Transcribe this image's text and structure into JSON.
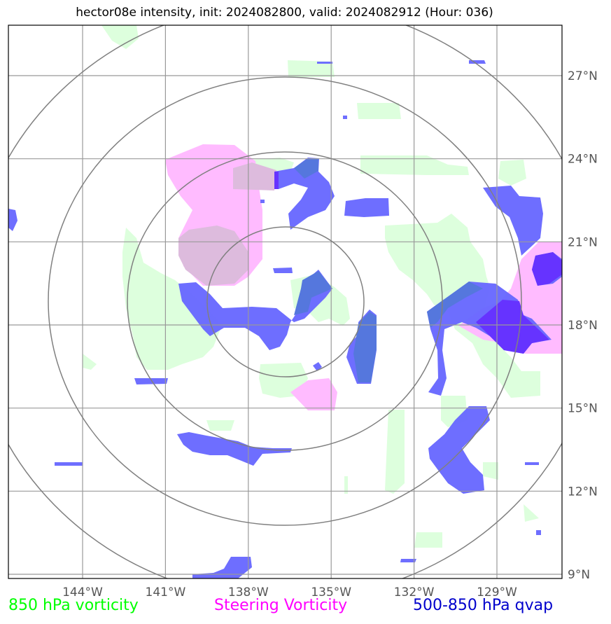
{
  "title": "hector08e intensity, init: 2024082800, valid: 2024082912 (Hour: 036)",
  "map": {
    "lon_range": [
      -147,
      -127
    ],
    "lat_range": [
      8,
      28
    ],
    "x_ticks": [
      "144°W",
      "141°W",
      "138°W",
      "135°W",
      "132°W",
      "129°W"
    ],
    "x_tick_values": [
      -144,
      -141,
      -138,
      -135,
      -132,
      -129
    ],
    "y_ticks": [
      "27°N",
      "24°N",
      "21°N",
      "18°N",
      "15°N",
      "12°N",
      "9°N"
    ],
    "y_tick_values": [
      27,
      24,
      21,
      18,
      15,
      12,
      9
    ],
    "gridlines": true,
    "range_rings_center": [
      -136.3,
      19.0
    ],
    "range_rings_count": 4
  },
  "legend": [
    {
      "label": "850 hPa vorticity",
      "color": "#00ff00"
    },
    {
      "label": "Steering Vorticity",
      "color": "#ff00ff"
    },
    {
      "label": "500-850 hPa qvap",
      "color": "#0000cc"
    }
  ],
  "colors": {
    "vort850_fill": "#ddffdd",
    "steering_fill": "#ffbbff",
    "qvap_fill": "#6666ff",
    "qvap_dark": "#6633ff",
    "grid": "#999999",
    "rings": "#808080"
  }
}
